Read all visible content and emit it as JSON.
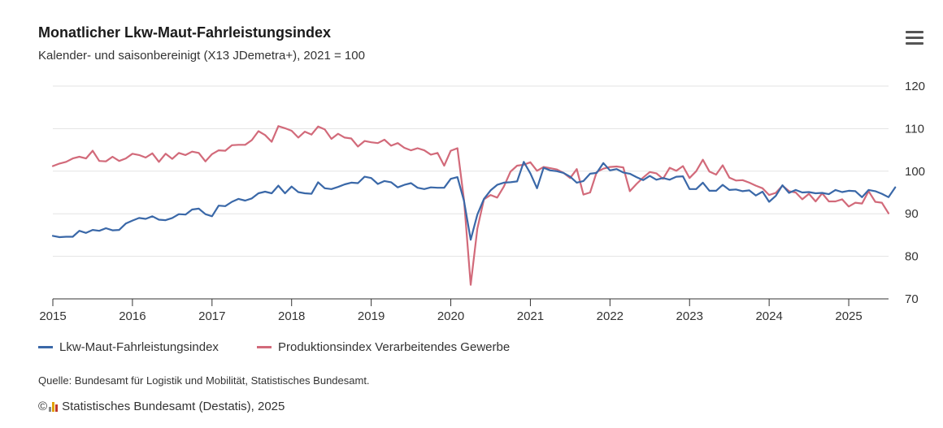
{
  "chart_data": {
    "type": "line",
    "title": "Monatlicher Lkw-Maut-Fahrleistungsindex",
    "subtitle": "Kalender- und saisonbereinigt (X13 JDemetra+), 2021 = 100",
    "x_start": 2015.0,
    "x_step": 0.0833333,
    "xlim": [
      2015.0,
      2025.5
    ],
    "ylim": [
      70,
      120
    ],
    "y_ticks": [
      70,
      80,
      90,
      100,
      110,
      120
    ],
    "x_ticks": [
      2015,
      2016,
      2017,
      2018,
      2019,
      2020,
      2021,
      2022,
      2023,
      2024,
      2025
    ],
    "axis_side": "right",
    "grid": true,
    "legend_position": "bottom-left",
    "series": [
      {
        "name": "Lkw-Maut-Fahrleistungsindex",
        "color": "#3a68a8",
        "values": [
          84.8,
          84.5,
          84.6,
          84.6,
          86.0,
          85.5,
          86.2,
          86.0,
          86.6,
          86.1,
          86.2,
          87.7,
          88.4,
          89.0,
          88.8,
          89.4,
          88.6,
          88.5,
          89.0,
          89.9,
          89.8,
          91.0,
          91.2,
          89.9,
          89.4,
          91.9,
          91.8,
          92.8,
          93.5,
          93.1,
          93.6,
          94.8,
          95.2,
          94.8,
          96.6,
          94.8,
          96.4,
          95.1,
          94.8,
          94.7,
          97.4,
          96.0,
          95.8,
          96.3,
          96.9,
          97.3,
          97.2,
          98.7,
          98.4,
          97.0,
          97.7,
          97.4,
          96.2,
          96.8,
          97.2,
          96.1,
          95.8,
          96.2,
          96.1,
          96.1,
          98.2,
          98.6,
          93.0,
          83.9,
          89.8,
          93.5,
          95.5,
          96.8,
          97.3,
          97.4,
          97.6,
          102.2,
          99.5,
          96.0,
          100.8,
          100.2,
          100.0,
          99.6,
          98.7,
          97.3,
          97.7,
          99.4,
          99.6,
          101.9,
          100.2,
          100.5,
          99.7,
          99.4,
          98.6,
          97.9,
          98.9,
          98.0,
          98.4,
          98.0,
          98.7,
          98.8,
          95.8,
          95.8,
          97.3,
          95.4,
          95.4,
          96.8,
          95.6,
          95.7,
          95.3,
          95.5,
          94.3,
          95.2,
          92.8,
          94.2,
          96.7,
          94.9,
          95.6,
          95.0,
          95.1,
          94.8,
          94.9,
          94.6,
          95.6,
          95.1,
          95.4,
          95.3,
          93.9,
          95.6,
          95.3,
          94.7,
          93.9,
          96.2
        ]
      },
      {
        "name": "Produktionsindex Verarbeitendes Gewerbe",
        "color": "#d26a7a",
        "values": [
          101.2,
          101.8,
          102.2,
          103.0,
          103.4,
          103.0,
          104.8,
          102.4,
          102.3,
          103.4,
          102.4,
          103.0,
          104.1,
          103.8,
          103.2,
          104.2,
          102.2,
          104.1,
          102.9,
          104.3,
          103.8,
          104.6,
          104.3,
          102.3,
          104.0,
          104.9,
          104.8,
          106.1,
          106.2,
          106.2,
          107.3,
          109.4,
          108.5,
          106.9,
          110.6,
          110.1,
          109.5,
          107.9,
          109.3,
          108.6,
          110.5,
          109.8,
          107.6,
          108.8,
          107.9,
          107.7,
          105.8,
          107.1,
          106.8,
          106.6,
          107.4,
          106.0,
          106.6,
          105.5,
          104.9,
          105.4,
          104.9,
          103.9,
          104.3,
          101.3,
          104.8,
          105.4,
          93.2,
          73.3,
          86.5,
          93.4,
          94.4,
          93.8,
          96.4,
          99.9,
          101.3,
          101.5,
          102.1,
          100.1,
          101.0,
          100.7,
          100.4,
          99.6,
          98.4,
          100.5,
          94.5,
          95.0,
          99.8,
          100.6,
          101.0,
          101.1,
          100.9,
          95.3,
          97.0,
          98.5,
          99.8,
          99.5,
          98.2,
          100.8,
          100.1,
          101.2,
          98.4,
          100.0,
          102.7,
          99.9,
          99.2,
          101.4,
          98.5,
          97.8,
          97.9,
          97.3,
          96.6,
          96.0,
          94.4,
          94.9,
          96.6,
          95.3,
          95.0,
          93.4,
          94.7,
          92.9,
          94.8,
          92.9,
          92.9,
          93.4,
          91.7,
          92.6,
          92.4,
          95.3,
          92.8,
          92.6,
          90.1
        ]
      }
    ]
  },
  "legend": {
    "item1": "Lkw-Maut-Fahrleistungsindex",
    "item2": "Produktionsindex Verarbeitendes Gewerbe"
  },
  "source": "Quelle: Bundesamt für Logistik und Mobilität, Statistisches Bundesamt.",
  "credits": "Statistisches Bundesamt (Destatis), 2025",
  "menu_icon": "hamburger-menu-icon"
}
